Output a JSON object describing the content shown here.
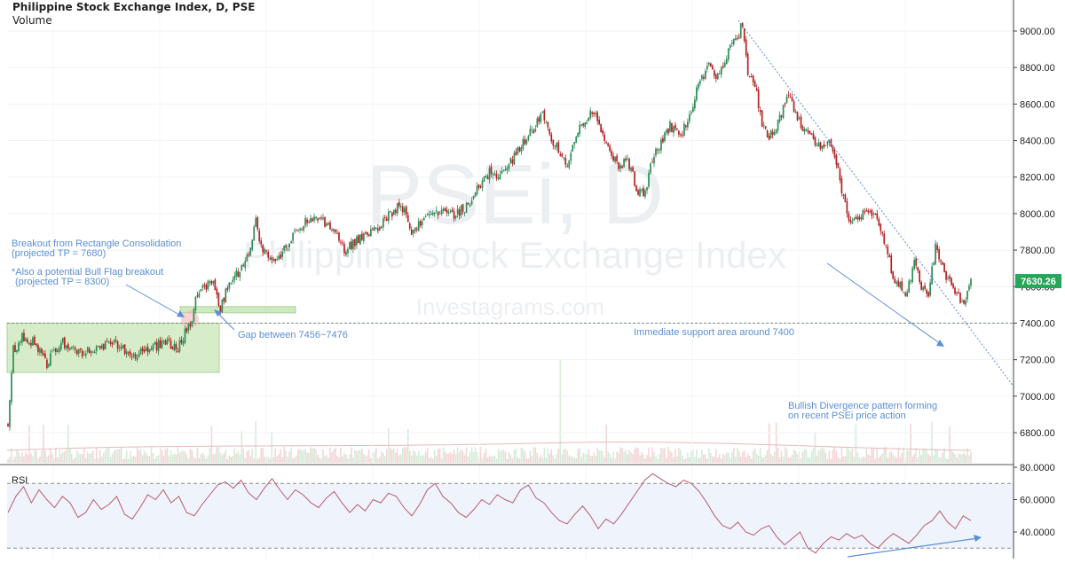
{
  "header": {
    "title": "Philippine Stock Exchange Index, D, PSE",
    "volume_label": "Volume"
  },
  "watermark": {
    "big": "PSEi, D",
    "name": "Philippine Stock Exchange Index",
    "site": "Investagrams.com"
  },
  "colors": {
    "up": "#2e8b57",
    "down": "#b22222",
    "annotation": "#5b8fd6",
    "zone": "#c9e7b8",
    "rsi_line": "#b85c6a",
    "rsi_band": "#eef3fc"
  },
  "annotations": {
    "breakout_1": "Breakout from Rectangle Consolidation",
    "breakout_2": "(projected TP = 7680)",
    "bullflag_1": "*Also a potential Bull Flag breakout",
    "bullflag_2": "(projected TP = 8300)",
    "gap": "Gap between 7456~7476",
    "support": "Immediate support area around 7400",
    "divergence_1": "Bullish Divergence pattern forming",
    "divergence_2": "on recent PSEi price action"
  },
  "chart_data": [
    {
      "type": "candlestick",
      "title": "Philippine Stock Exchange Index, D, PSE",
      "ylim": [
        6700,
        9100
      ],
      "y_ticks": [
        "9000.00",
        "8800.00",
        "8600.00",
        "8400.00",
        "8200.00",
        "8000.00",
        "7800.00",
        "7600.00",
        "7400.00",
        "7200.00",
        "7000.00",
        "6800.00"
      ],
      "y_tick_values": [
        9000,
        8800,
        8600,
        8400,
        8200,
        8000,
        7800,
        7600,
        7400,
        7200,
        7000,
        6800
      ],
      "last_price_label": "7630.26",
      "last_price": 7630.26,
      "support_level": 7400,
      "rectangle_consolidation": {
        "low": 7130,
        "high": 7400
      },
      "gap_zone": {
        "low": 7456,
        "high": 7476
      },
      "close_path": [
        [
          0,
          6850
        ],
        [
          3,
          7250
        ],
        [
          8,
          7320
        ],
        [
          15,
          7300
        ],
        [
          22,
          7180
        ],
        [
          30,
          7300
        ],
        [
          40,
          7240
        ],
        [
          50,
          7250
        ],
        [
          60,
          7300
        ],
        [
          70,
          7220
        ],
        [
          80,
          7260
        ],
        [
          90,
          7300
        ],
        [
          96,
          7260
        ],
        [
          100,
          7350
        ],
        [
          104,
          7400
        ],
        [
          106,
          7560
        ],
        [
          110,
          7600
        ],
        [
          116,
          7620
        ],
        [
          120,
          7480
        ],
        [
          124,
          7600
        ],
        [
          130,
          7680
        ],
        [
          136,
          7780
        ],
        [
          140,
          7950
        ],
        [
          144,
          7800
        ],
        [
          150,
          7720
        ],
        [
          160,
          7860
        ],
        [
          168,
          7950
        ],
        [
          176,
          7980
        ],
        [
          184,
          7900
        ],
        [
          190,
          7800
        ],
        [
          198,
          7860
        ],
        [
          206,
          7900
        ],
        [
          214,
          7980
        ],
        [
          222,
          8060
        ],
        [
          228,
          7900
        ],
        [
          236,
          7980
        ],
        [
          244,
          8020
        ],
        [
          252,
          7990
        ],
        [
          260,
          8050
        ],
        [
          266,
          8140
        ],
        [
          272,
          8230
        ],
        [
          278,
          8200
        ],
        [
          284,
          8280
        ],
        [
          290,
          8380
        ],
        [
          296,
          8450
        ],
        [
          302,
          8560
        ],
        [
          306,
          8440
        ],
        [
          310,
          8360
        ],
        [
          316,
          8280
        ],
        [
          320,
          8400
        ],
        [
          326,
          8520
        ],
        [
          332,
          8560
        ],
        [
          336,
          8420
        ],
        [
          340,
          8320
        ],
        [
          346,
          8260
        ],
        [
          350,
          8300
        ],
        [
          356,
          8120
        ],
        [
          360,
          8110
        ],
        [
          364,
          8300
        ],
        [
          370,
          8400
        ],
        [
          374,
          8480
        ],
        [
          380,
          8420
        ],
        [
          386,
          8570
        ],
        [
          390,
          8700
        ],
        [
          396,
          8800
        ],
        [
          400,
          8740
        ],
        [
          404,
          8820
        ],
        [
          408,
          8900
        ],
        [
          412,
          8960
        ],
        [
          415,
          9050
        ],
        [
          418,
          8780
        ],
        [
          422,
          8700
        ],
        [
          426,
          8500
        ],
        [
          430,
          8420
        ],
        [
          436,
          8520
        ],
        [
          440,
          8660
        ],
        [
          446,
          8520
        ],
        [
          450,
          8460
        ],
        [
          456,
          8400
        ],
        [
          460,
          8360
        ],
        [
          464,
          8420
        ],
        [
          468,
          8280
        ],
        [
          472,
          8080
        ],
        [
          476,
          7930
        ],
        [
          480,
          7980
        ],
        [
          486,
          8030
        ],
        [
          492,
          7960
        ],
        [
          496,
          7820
        ],
        [
          500,
          7650
        ],
        [
          504,
          7600
        ],
        [
          508,
          7560
        ],
        [
          512,
          7760
        ],
        [
          516,
          7580
        ],
        [
          520,
          7560
        ],
        [
          524,
          7820
        ],
        [
          528,
          7700
        ],
        [
          532,
          7620
        ],
        [
          536,
          7560
        ],
        [
          540,
          7500
        ],
        [
          544,
          7630
        ]
      ]
    },
    {
      "type": "line",
      "title": "RSI",
      "ylim": [
        25,
        80
      ],
      "y_ticks": [
        "80.0000",
        "60.0000",
        "40.0000"
      ],
      "y_tick_values": [
        80,
        60,
        40
      ],
      "overbought": 70,
      "oversold": 30,
      "series": [
        {
          "name": "RSI",
          "values": [
            52,
            62,
            68,
            58,
            66,
            60,
            55,
            62,
            58,
            49,
            52,
            60,
            54,
            57,
            62,
            51,
            48,
            55,
            63,
            60,
            66,
            58,
            62,
            52,
            50,
            57,
            63,
            69,
            71,
            67,
            72,
            64,
            60,
            67,
            73,
            66,
            60,
            66,
            63,
            58,
            55,
            61,
            65,
            58,
            52,
            57,
            53,
            60,
            58,
            64,
            62,
            55,
            50,
            57,
            66,
            70,
            62,
            58,
            52,
            49,
            54,
            60,
            57,
            63,
            60,
            58,
            66,
            69,
            61,
            58,
            52,
            47,
            45,
            51,
            56,
            50,
            42,
            48,
            45,
            51,
            58,
            65,
            72,
            76,
            73,
            70,
            68,
            72,
            70,
            65,
            58,
            50,
            44,
            42,
            46,
            40,
            38,
            42,
            44,
            37,
            32,
            36,
            40,
            30,
            27,
            33,
            37,
            35,
            39,
            36,
            38,
            33,
            30,
            35,
            39,
            36,
            33,
            38,
            44,
            47,
            53,
            46,
            42,
            50,
            47
          ]
        }
      ],
      "divergence_line": [
        [
          1700,
          28
        ],
        [
          1800,
          36
        ]
      ]
    }
  ]
}
